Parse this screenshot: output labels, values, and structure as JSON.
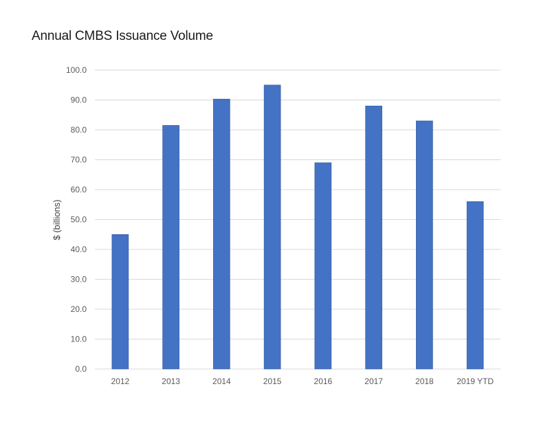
{
  "chart_data": {
    "type": "bar",
    "title": "Annual CMBS Issuance Volume",
    "xlabel": "",
    "ylabel": "$ (billions)",
    "categories": [
      "2012",
      "2013",
      "2014",
      "2015",
      "2016",
      "2017",
      "2018",
      "2019 YTD"
    ],
    "values": [
      45.0,
      81.5,
      90.3,
      95.0,
      69.0,
      88.0,
      83.0,
      56.0
    ],
    "ylim": [
      0,
      100
    ],
    "yticks": [
      "0.0",
      "10.0",
      "20.0",
      "30.0",
      "40.0",
      "50.0",
      "60.0",
      "70.0",
      "80.0",
      "90.0",
      "100.0"
    ],
    "grid": true,
    "legend": "none",
    "colors": {
      "bar": "#4472c4",
      "bar_edge": "#2f5597"
    }
  }
}
